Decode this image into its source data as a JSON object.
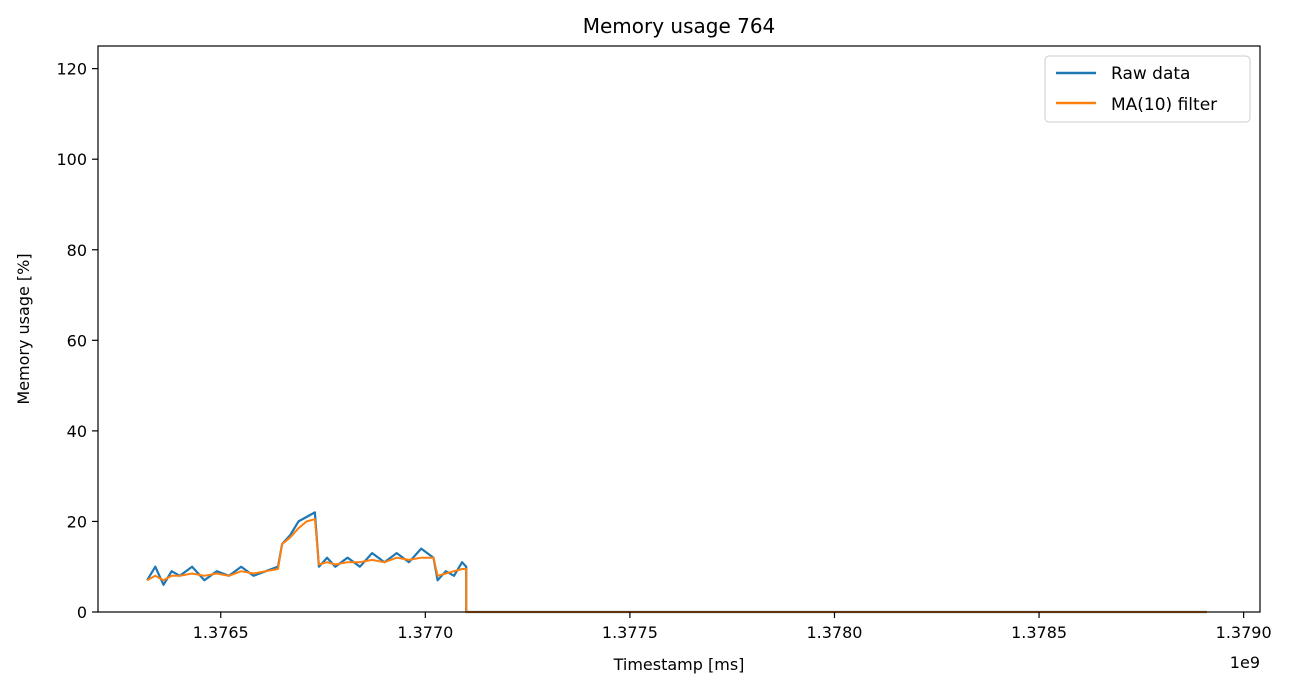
{
  "chart_data": {
    "type": "line",
    "title": "Memory usage 764",
    "xlabel": "Timestamp [ms]",
    "ylabel": "Memory usage [%]",
    "x_offset_label": "1e9",
    "xlim": [
      1.3762,
      1.37904
    ],
    "ylim": [
      0,
      125
    ],
    "x_ticks": [
      1.3765,
      1.377,
      1.3775,
      1.378,
      1.3785,
      1.379
    ],
    "x_tick_labels": [
      "1.3765",
      "1.3770",
      "1.3775",
      "1.3780",
      "1.3785",
      "1.3790"
    ],
    "y_ticks": [
      0,
      20,
      40,
      60,
      80,
      100,
      120
    ],
    "y_tick_labels": [
      "0",
      "20",
      "40",
      "60",
      "80",
      "100",
      "120"
    ],
    "grid": false,
    "legend_position": "top-right",
    "series": [
      {
        "name": "Raw data",
        "color": "#1f77b4",
        "x": [
          1.37632,
          1.37634,
          1.37636,
          1.37638,
          1.3764,
          1.37643,
          1.37646,
          1.37649,
          1.37652,
          1.37655,
          1.37658,
          1.37661,
          1.37664,
          1.37665,
          1.37667,
          1.37669,
          1.37671,
          1.37673,
          1.37674,
          1.37676,
          1.37678,
          1.37681,
          1.37684,
          1.37687,
          1.3769,
          1.37693,
          1.37696,
          1.37699,
          1.37702,
          1.37703,
          1.37705,
          1.37707,
          1.37709,
          1.3771,
          1.3771,
          1.37891
        ],
        "values": [
          7,
          10,
          6,
          9,
          8,
          10,
          7,
          9,
          8,
          10,
          8,
          9,
          10,
          15,
          17,
          20,
          21,
          22,
          10,
          12,
          10,
          12,
          10,
          13,
          11,
          13,
          11,
          14,
          12,
          7,
          9,
          8,
          11,
          10,
          0,
          0
        ]
      },
      {
        "name": "MA(10) filter",
        "color": "#ff7f0e",
        "x": [
          1.37632,
          1.37634,
          1.37636,
          1.37638,
          1.3764,
          1.37643,
          1.37646,
          1.37649,
          1.37652,
          1.37655,
          1.37658,
          1.37661,
          1.37664,
          1.37665,
          1.37667,
          1.37669,
          1.37671,
          1.37673,
          1.37674,
          1.37676,
          1.37678,
          1.37681,
          1.37684,
          1.37687,
          1.3769,
          1.37693,
          1.37696,
          1.37699,
          1.37702,
          1.37703,
          1.37705,
          1.37707,
          1.37709,
          1.3771,
          1.3771,
          1.37891
        ],
        "values": [
          7,
          8,
          7,
          8,
          8,
          8.5,
          8,
          8.5,
          8,
          9,
          8.5,
          9,
          9.5,
          15,
          16.5,
          18.5,
          20,
          20.5,
          10.5,
          11,
          10.5,
          11,
          11,
          11.5,
          11,
          12,
          11.5,
          12,
          12,
          8,
          8.5,
          9,
          9.5,
          9.5,
          0,
          0
        ]
      }
    ]
  }
}
